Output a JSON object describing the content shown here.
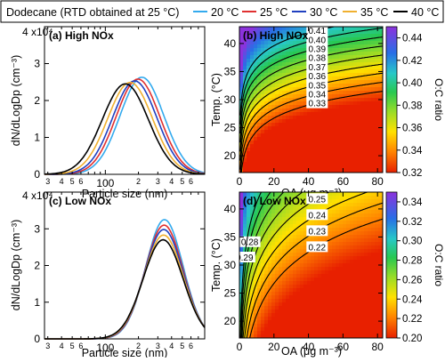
{
  "legend": {
    "title": "Dodecane (RTD obtained at 25 °C)",
    "entries": [
      {
        "label": "20 °C",
        "color": "#33aaee"
      },
      {
        "label": "25 °C",
        "color": "#e03030"
      },
      {
        "label": "30 °C",
        "color": "#2040c0"
      },
      {
        "label": "35 °C",
        "color": "#f0b030"
      },
      {
        "label": "40 °C",
        "color": "#000000"
      }
    ]
  },
  "chart_data": [
    {
      "type": "line",
      "panel": "a",
      "title": "(a) High NOx",
      "xlabel": "Particle size (nm)",
      "ylabel": "dN/dLogDp (cm⁻³)",
      "x_scale": "log",
      "xlim": [
        28,
        800
      ],
      "ylim": [
        0,
        40000
      ],
      "y_exponent_label": "4 x10⁴",
      "y_ticks": [
        "0",
        "1",
        "2",
        "3"
      ],
      "x_tick_labels": [
        {
          "v": 30,
          "t": "3"
        },
        {
          "v": 40,
          "t": "4"
        },
        {
          "v": 50,
          "t": "5"
        },
        {
          "v": 60,
          "t": "6"
        },
        {
          "v": 100,
          "t": "100"
        },
        {
          "v": 200,
          "t": "2"
        },
        {
          "v": 300,
          "t": "3"
        },
        {
          "v": 400,
          "t": "4"
        },
        {
          "v": 500,
          "t": "5"
        },
        {
          "v": 600,
          "t": "6"
        }
      ],
      "series": [
        {
          "name": "20 °C",
          "peak_diameter": 215,
          "peak": 26300,
          "sigma": 1.58
        },
        {
          "name": "25 °C",
          "peak_diameter": 198,
          "peak": 25800,
          "sigma": 1.58
        },
        {
          "name": "30 °C",
          "peak_diameter": 185,
          "peak": 25300,
          "sigma": 1.59
        },
        {
          "name": "35 °C",
          "peak_diameter": 168,
          "peak": 24900,
          "sigma": 1.6
        },
        {
          "name": "40 °C",
          "peak_diameter": 152,
          "peak": 24500,
          "sigma": 1.62
        }
      ]
    },
    {
      "type": "heatmap",
      "panel": "b",
      "title": "(b) High NOx",
      "xlabel": "OA (μg m⁻³)",
      "ylabel": "Temp. (°C)",
      "colorbar_label": "O:C ratio",
      "xlim": [
        0,
        83
      ],
      "ylim": [
        17,
        43
      ],
      "x_ticks": [
        0,
        20,
        40,
        60,
        80
      ],
      "y_ticks": [
        20,
        25,
        30,
        35,
        40
      ],
      "clim": [
        0.32,
        0.45
      ],
      "colorbar_ticks": [
        0.32,
        0.34,
        0.36,
        0.38,
        0.4,
        0.42,
        0.44
      ],
      "contour_levels": [
        0.33,
        0.34,
        0.35,
        0.36,
        0.37,
        0.38,
        0.39,
        0.4,
        0.41
      ]
    },
    {
      "type": "line",
      "panel": "c",
      "title": "(c) Low NOx",
      "xlabel": "Particle size (nm)",
      "ylabel": "dN/dLogDp (cm⁻³)",
      "x_scale": "log",
      "xlim": [
        28,
        800
      ],
      "ylim": [
        0,
        40000
      ],
      "y_exponent_label": "4 x10⁴",
      "y_ticks": [
        "0",
        "1",
        "2",
        "3"
      ],
      "x_tick_labels": [
        {
          "v": 30,
          "t": "3"
        },
        {
          "v": 40,
          "t": "4"
        },
        {
          "v": 50,
          "t": "5"
        },
        {
          "v": 60,
          "t": "6"
        },
        {
          "v": 100,
          "t": "100"
        },
        {
          "v": 200,
          "t": "2"
        },
        {
          "v": 300,
          "t": "3"
        },
        {
          "v": 400,
          "t": "4"
        },
        {
          "v": 500,
          "t": "5"
        },
        {
          "v": 600,
          "t": "6"
        }
      ],
      "series": [
        {
          "name": "20 °C",
          "peak_diameter": 345,
          "peak": 32500,
          "sigma": 1.48
        },
        {
          "name": "25 °C",
          "peak_diameter": 342,
          "peak": 31000,
          "sigma": 1.49
        },
        {
          "name": "30 °C",
          "peak_diameter": 340,
          "peak": 29800,
          "sigma": 1.5
        },
        {
          "name": "35 °C",
          "peak_diameter": 338,
          "peak": 28300,
          "sigma": 1.51
        },
        {
          "name": "40 °C",
          "peak_diameter": 335,
          "peak": 27000,
          "sigma": 1.52
        }
      ]
    },
    {
      "type": "heatmap",
      "panel": "d",
      "title": "(d) Low NOx",
      "xlabel": "OA (μg m⁻³)",
      "ylabel": "Temp. (°C)",
      "colorbar_label": "O:C ratio",
      "xlim": [
        0,
        83
      ],
      "ylim": [
        17,
        43
      ],
      "x_ticks": [
        0,
        20,
        40,
        60,
        80
      ],
      "y_ticks": [
        20,
        25,
        30,
        35,
        40
      ],
      "clim": [
        0.2,
        0.35
      ],
      "colorbar_ticks": [
        0.2,
        0.22,
        0.24,
        0.26,
        0.28,
        0.3,
        0.32,
        0.34
      ],
      "contour_levels": [
        0.22,
        0.23,
        0.24,
        0.25,
        0.26,
        0.27,
        0.28,
        0.29
      ]
    }
  ]
}
